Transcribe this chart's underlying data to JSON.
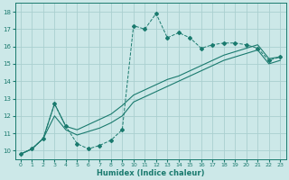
{
  "bg_color": "#cce8e8",
  "grid_color": "#aacfcf",
  "line_color": "#1a7a6e",
  "xlabel": "Humidex (Indice chaleur)",
  "xlim": [
    -0.5,
    23.5
  ],
  "ylim": [
    9.5,
    18.5
  ],
  "yticks": [
    10,
    11,
    12,
    13,
    14,
    15,
    16,
    17,
    18
  ],
  "xticks": [
    0,
    1,
    2,
    3,
    4,
    5,
    6,
    7,
    8,
    9,
    10,
    11,
    12,
    13,
    14,
    15,
    16,
    17,
    18,
    19,
    20,
    21,
    22,
    23
  ],
  "spiky_x": [
    0,
    1,
    2,
    3,
    4,
    5,
    6,
    7,
    8,
    9,
    10,
    11,
    12,
    13,
    14,
    15,
    16,
    17,
    18,
    19,
    20,
    21,
    22,
    23
  ],
  "spiky_y": [
    9.8,
    10.1,
    10.7,
    12.7,
    11.4,
    10.4,
    10.1,
    10.3,
    10.6,
    11.2,
    17.2,
    17.0,
    17.9,
    16.5,
    16.8,
    16.5,
    15.9,
    16.1,
    16.2,
    16.2,
    16.1,
    15.9,
    15.2,
    15.4
  ],
  "upper_x": [
    0,
    1,
    2,
    3,
    4,
    5,
    6,
    7,
    8,
    9,
    10,
    11,
    12,
    13,
    14,
    15,
    16,
    17,
    18,
    19,
    20,
    21,
    22,
    23
  ],
  "upper_y": [
    9.8,
    10.1,
    10.7,
    12.7,
    11.4,
    11.2,
    11.5,
    11.8,
    12.1,
    12.6,
    13.2,
    13.5,
    13.8,
    14.1,
    14.3,
    14.6,
    14.9,
    15.2,
    15.5,
    15.7,
    15.9,
    16.1,
    15.3,
    15.4
  ],
  "lower_x": [
    0,
    1,
    2,
    3,
    4,
    5,
    6,
    7,
    8,
    9,
    10,
    11,
    12,
    13,
    14,
    15,
    16,
    17,
    18,
    19,
    20,
    21,
    22,
    23
  ],
  "lower_y": [
    9.8,
    10.1,
    10.7,
    12.0,
    11.2,
    10.9,
    11.1,
    11.3,
    11.6,
    12.0,
    12.8,
    13.1,
    13.4,
    13.7,
    14.0,
    14.3,
    14.6,
    14.9,
    15.2,
    15.4,
    15.6,
    15.8,
    15.0,
    15.2
  ]
}
